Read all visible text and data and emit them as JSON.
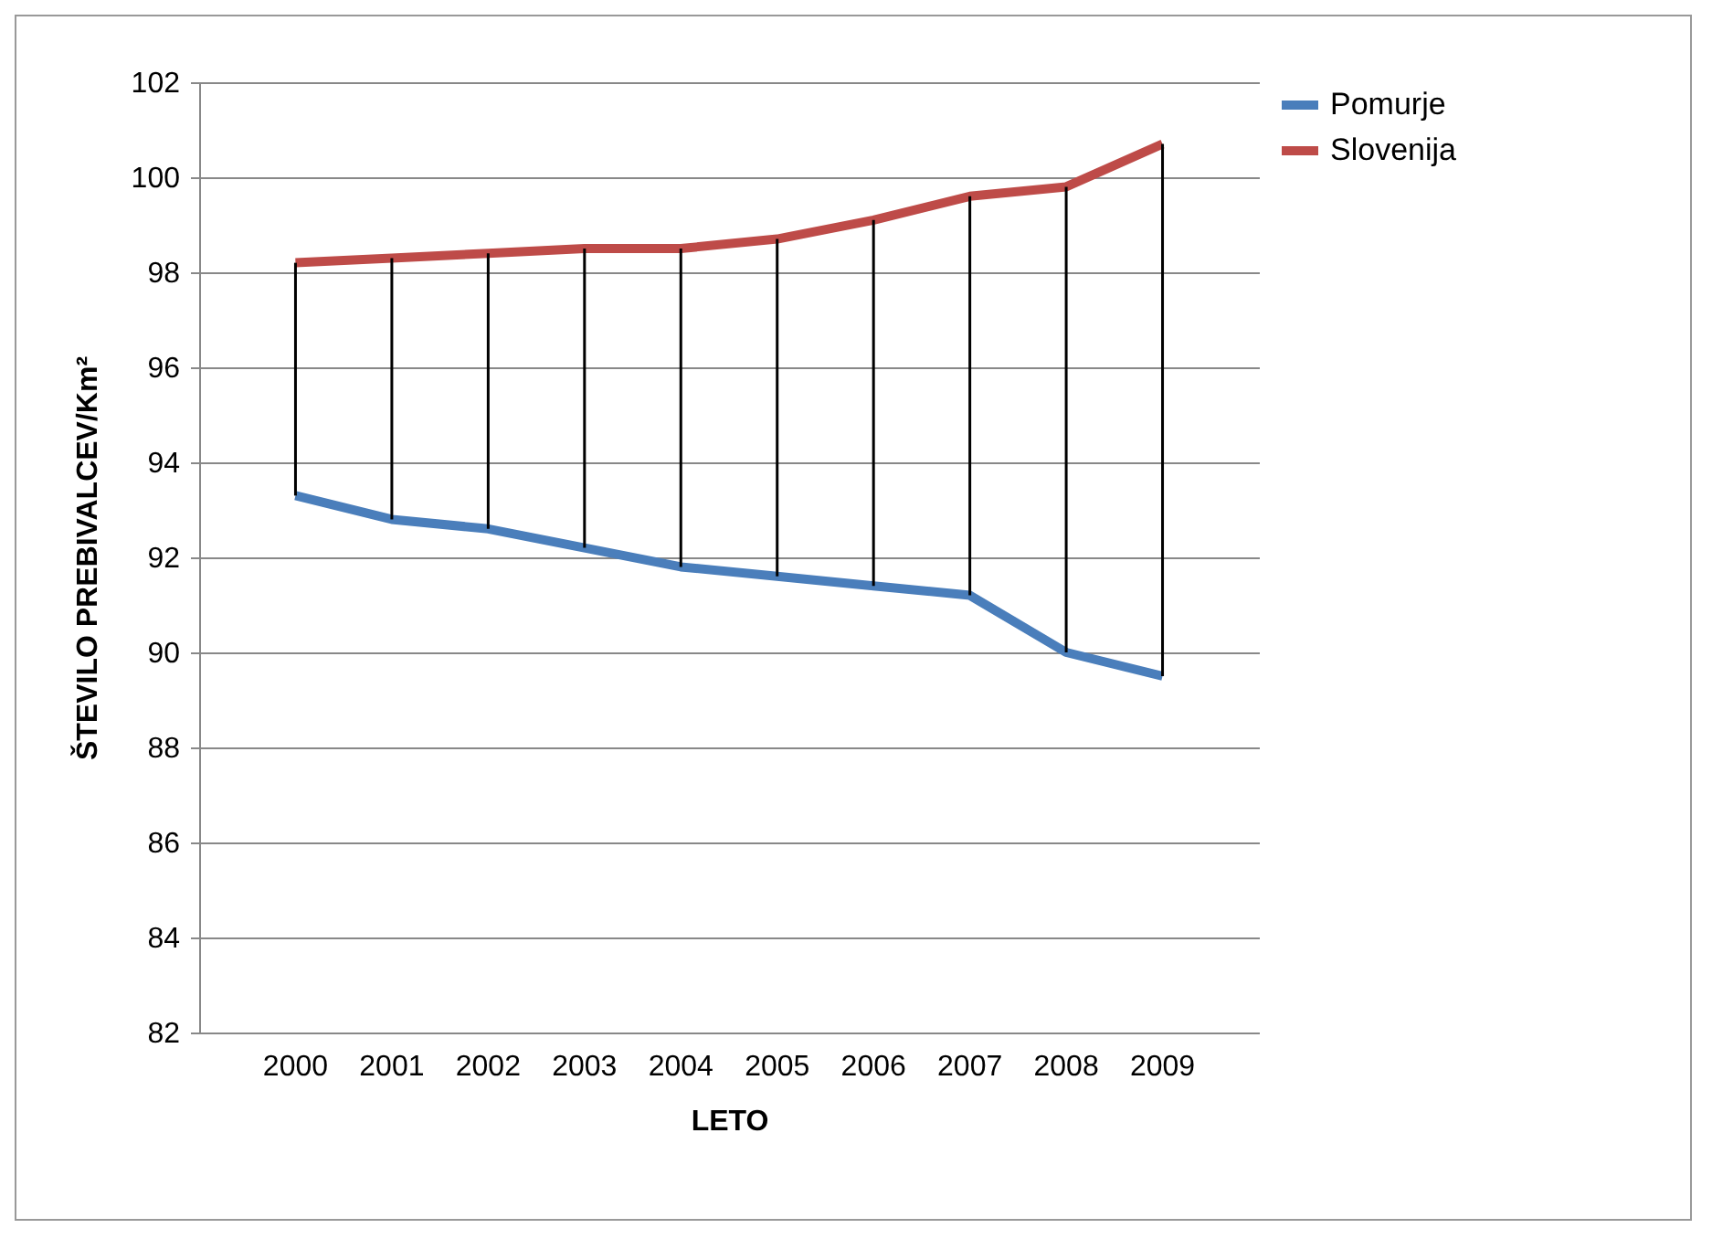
{
  "chart_data": {
    "type": "line",
    "xlabel": "LETO",
    "ylabel": "ŠTEVILO PREBIVALCEV/Km²",
    "categories": [
      "2000",
      "2001",
      "2002",
      "2003",
      "2004",
      "2005",
      "2006",
      "2007",
      "2008",
      "2009"
    ],
    "series": [
      {
        "name": "Pomurje",
        "color": "#4a7ebb",
        "values": [
          93.3,
          92.8,
          92.6,
          92.2,
          91.8,
          91.6,
          91.4,
          91.2,
          90.0,
          89.5
        ],
        "errors": [
          [
            93.3,
            98.2
          ],
          [
            92.8,
            98.3
          ],
          [
            92.6,
            98.4
          ],
          [
            92.2,
            98.5
          ],
          [
            91.8,
            98.5
          ],
          [
            91.6,
            98.7
          ],
          [
            91.4,
            99.1
          ],
          [
            91.2,
            99.6
          ],
          [
            90.0,
            99.8
          ],
          [
            89.5,
            100.7
          ]
        ]
      },
      {
        "name": "Slovenija",
        "color": "#be4b48",
        "values": [
          98.2,
          98.3,
          98.4,
          98.5,
          98.5,
          98.7,
          99.1,
          99.6,
          99.8,
          100.7
        ]
      }
    ],
    "ylim": [
      82,
      102
    ],
    "yticks": [
      82,
      84,
      86,
      88,
      90,
      92,
      94,
      96,
      98,
      100,
      102
    ],
    "grid": "y",
    "legend": "right",
    "marker": "none",
    "line_style": "solid"
  }
}
